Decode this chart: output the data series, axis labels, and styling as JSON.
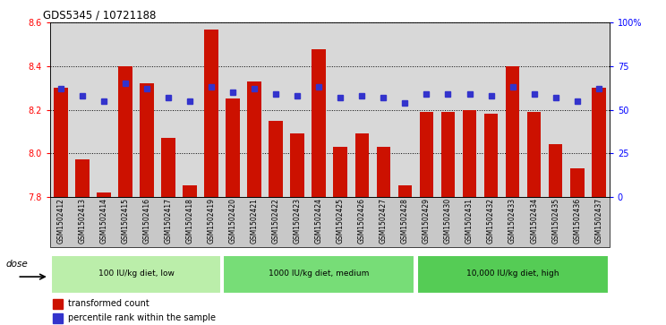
{
  "title": "GDS5345 / 10721188",
  "samples": [
    "GSM1502412",
    "GSM1502413",
    "GSM1502414",
    "GSM1502415",
    "GSM1502416",
    "GSM1502417",
    "GSM1502418",
    "GSM1502419",
    "GSM1502420",
    "GSM1502421",
    "GSM1502422",
    "GSM1502423",
    "GSM1502424",
    "GSM1502425",
    "GSM1502426",
    "GSM1502427",
    "GSM1502428",
    "GSM1502429",
    "GSM1502430",
    "GSM1502431",
    "GSM1502432",
    "GSM1502433",
    "GSM1502434",
    "GSM1502435",
    "GSM1502436",
    "GSM1502437"
  ],
  "bar_values": [
    8.3,
    7.97,
    7.82,
    8.4,
    8.32,
    8.07,
    7.85,
    8.57,
    8.25,
    8.33,
    8.15,
    8.09,
    8.48,
    8.03,
    8.09,
    8.03,
    7.85,
    8.19,
    8.19,
    8.2,
    8.18,
    8.4,
    8.19,
    8.04,
    7.93,
    8.3
  ],
  "percentile_values": [
    62,
    58,
    55,
    65,
    62,
    57,
    55,
    63,
    60,
    62,
    59,
    58,
    63,
    57,
    58,
    57,
    54,
    59,
    59,
    59,
    58,
    63,
    59,
    57,
    55,
    62
  ],
  "y_min": 7.8,
  "y_max": 8.6,
  "bar_color": "#cc1100",
  "dot_color": "#3333cc",
  "plot_bg_color": "#d8d8d8",
  "xtick_bg_color": "#c8c8c8",
  "groups": [
    {
      "label": "100 IU/kg diet, low",
      "start": 0,
      "end": 8,
      "color": "#bbeeaa"
    },
    {
      "label": "1000 IU/kg diet, medium",
      "start": 8,
      "end": 17,
      "color": "#77dd77"
    },
    {
      "label": "10,000 IU/kg diet, high",
      "start": 17,
      "end": 26,
      "color": "#55cc55"
    }
  ],
  "dose_label": "dose",
  "legend_items": [
    {
      "label": "transformed count",
      "color": "#cc1100"
    },
    {
      "label": "percentile rank within the sample",
      "color": "#3333cc"
    }
  ],
  "right_yticks": [
    0,
    25,
    50,
    75,
    100
  ],
  "right_yticklabels": [
    "0",
    "25",
    "50",
    "75",
    "100%"
  ]
}
